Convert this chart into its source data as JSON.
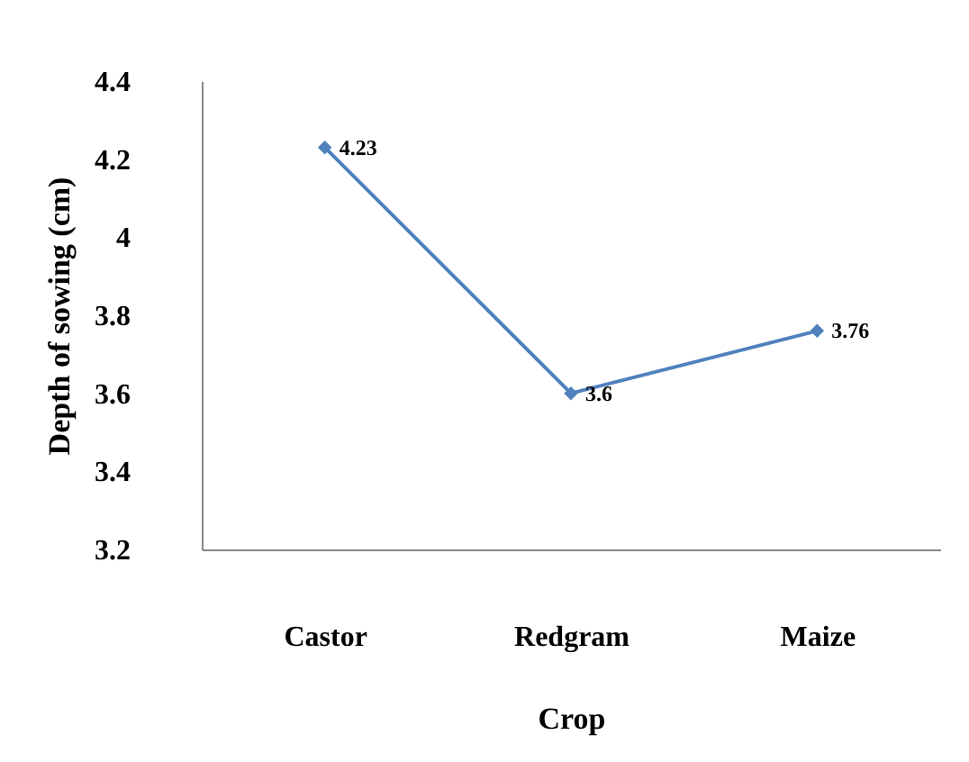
{
  "chart_data": {
    "type": "line",
    "xlabel": "Crop",
    "ylabel": "Depth of sowing (cm)",
    "categories": [
      "Castor",
      "Redgram",
      "Maize"
    ],
    "series": [
      {
        "color": "#4f81bd",
        "values": [
          4.23,
          3.6,
          3.76
        ]
      }
    ],
    "ylim": [
      3.2,
      4.4
    ],
    "yticks": [
      3.2,
      3.4,
      3.6,
      3.8,
      4,
      4.2,
      4.4
    ],
    "marker": "diamond",
    "data_labels": true
  }
}
